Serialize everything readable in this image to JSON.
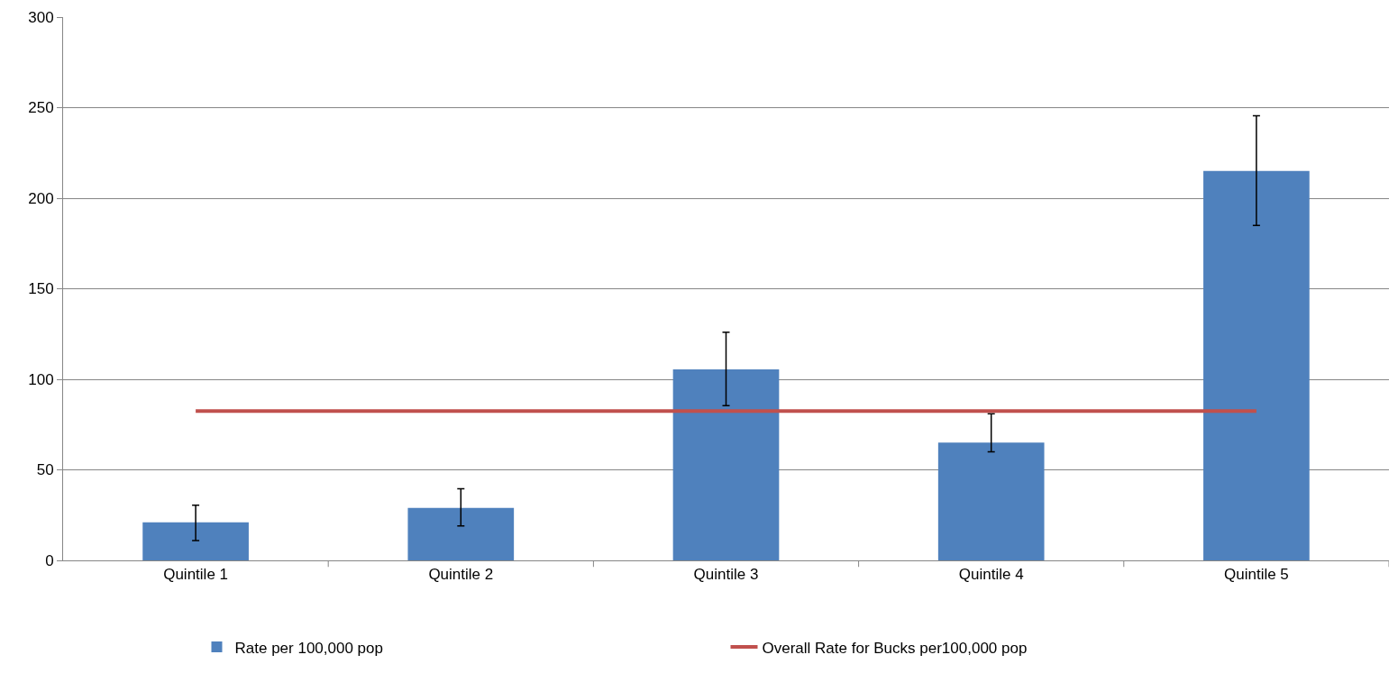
{
  "chart_data": {
    "type": "bar",
    "categories": [
      "Quintile 1",
      "Quintile 2",
      "Quintile 3",
      "Quintile 4",
      "Quintile 5"
    ],
    "series": [
      {
        "name": "Rate per 100,000 pop",
        "color": "#4f81bd",
        "values": [
          21,
          29,
          105.5,
          65,
          215
        ],
        "errors": [
          [
            11,
            30.5
          ],
          [
            19,
            39.5
          ],
          [
            85.5,
            126
          ],
          [
            60,
            81
          ],
          [
            185,
            245.5
          ]
        ]
      },
      {
        "name": "Overall Rate for Bucks per100,000 pop",
        "type": "line",
        "color": "#c0504d",
        "values": [
          82.5,
          82.5,
          82.5,
          82.5,
          82.5
        ]
      }
    ],
    "ylim": [
      0,
      300
    ],
    "yticks": [
      0,
      50,
      100,
      150,
      200,
      250,
      300
    ],
    "grid": "y",
    "legend": "bottom",
    "marker": "none",
    "line_style": "solid"
  }
}
